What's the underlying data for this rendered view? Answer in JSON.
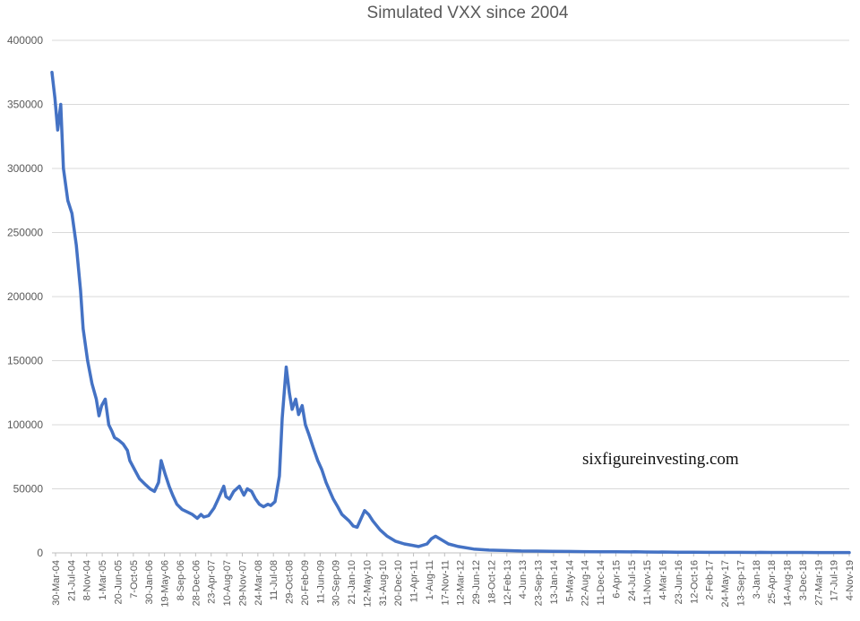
{
  "chart_data": {
    "type": "line",
    "title": "Simulated VXX since 2004",
    "xlabel": "",
    "ylabel": "",
    "ylim": [
      0,
      400000
    ],
    "yticks": [
      0,
      50000,
      100000,
      150000,
      200000,
      250000,
      300000,
      350000,
      400000
    ],
    "ytick_labels": [
      "0",
      "50000",
      "100000",
      "150000",
      "200000",
      "250000",
      "300000",
      "350000",
      "400000"
    ],
    "grid": true,
    "legend": "none",
    "line_color": "#4472c4",
    "xtick_labels": [
      "30-Mar-04",
      "21-Jul-04",
      "8-Nov-04",
      "1-Mar-05",
      "20-Jun-05",
      "7-Oct-05",
      "30-Jan-06",
      "19-May-06",
      "8-Sep-06",
      "28-Dec-06",
      "23-Apr-07",
      "10-Aug-07",
      "29-Nov-07",
      "24-Mar-08",
      "11-Jul-08",
      "29-Oct-08",
      "20-Feb-09",
      "11-Jun-09",
      "30-Sep-09",
      "21-Jan-10",
      "12-May-10",
      "31-Aug-10",
      "20-Dec-10",
      "11-Apr-11",
      "1-Aug-11",
      "17-Nov-11",
      "12-Mar-12",
      "29-Jun-12",
      "18-Oct-12",
      "12-Feb-13",
      "4-Jun-13",
      "23-Sep-13",
      "13-Jan-14",
      "5-May-14",
      "22-Aug-14",
      "11-Dec-14",
      "6-Apr-15",
      "24-Jul-15",
      "11-Nov-15",
      "4-Mar-16",
      "23-Jun-16",
      "12-Oct-16",
      "2-Feb-17",
      "24-May-17",
      "13-Sep-17",
      "3-Jan-18",
      "25-Apr-18",
      "14-Aug-18",
      "3-Dec-18",
      "27-Mar-19",
      "17-Jul-19",
      "4-Nov-19"
    ],
    "x": [
      "2004-03-30",
      "2004-04-20",
      "2004-05-10",
      "2004-06-01",
      "2004-06-20",
      "2004-07-21",
      "2004-08-20",
      "2004-09-20",
      "2004-10-20",
      "2004-11-08",
      "2004-12-10",
      "2005-01-10",
      "2005-02-10",
      "2005-03-01",
      "2005-03-20",
      "2005-04-15",
      "2005-05-10",
      "2005-06-01",
      "2005-06-20",
      "2005-07-20",
      "2005-08-20",
      "2005-09-20",
      "2005-10-07",
      "2005-11-10",
      "2005-12-15",
      "2006-01-30",
      "2006-03-01",
      "2006-04-01",
      "2006-05-01",
      "2006-05-19",
      "2006-06-15",
      "2006-07-15",
      "2006-08-10",
      "2006-09-08",
      "2006-10-15",
      "2006-11-20",
      "2006-12-28",
      "2007-02-01",
      "2007-02-28",
      "2007-03-20",
      "2007-04-23",
      "2007-06-01",
      "2007-07-01",
      "2007-08-10",
      "2007-08-25",
      "2007-09-20",
      "2007-10-20",
      "2007-11-29",
      "2008-01-01",
      "2008-01-25",
      "2008-02-25",
      "2008-03-24",
      "2008-04-20",
      "2008-05-20",
      "2008-06-20",
      "2008-07-11",
      "2008-08-10",
      "2008-09-10",
      "2008-09-30",
      "2008-10-29",
      "2008-11-20",
      "2008-12-10",
      "2009-01-05",
      "2009-01-25",
      "2009-02-20",
      "2009-03-15",
      "2009-04-10",
      "2009-05-10",
      "2009-06-11",
      "2009-07-10",
      "2009-08-10",
      "2009-09-10",
      "2009-09-30",
      "2009-11-01",
      "2009-12-01",
      "2010-01-21",
      "2010-02-20",
      "2010-03-20",
      "2010-05-12",
      "2010-06-10",
      "2010-07-10",
      "2010-08-31",
      "2010-10-20",
      "2010-12-20",
      "2011-02-20",
      "2011-04-11",
      "2011-06-01",
      "2011-08-01",
      "2011-09-01",
      "2011-10-01",
      "2011-11-17",
      "2012-01-01",
      "2012-03-12",
      "2012-06-29",
      "2012-10-18",
      "2013-02-12",
      "2013-06-04",
      "2013-09-23",
      "2014-01-13",
      "2014-05-05",
      "2014-08-22",
      "2014-12-11",
      "2015-04-06",
      "2015-07-24",
      "2015-08-24",
      "2015-11-11",
      "2016-02-11",
      "2016-03-04",
      "2016-06-23",
      "2016-10-12",
      "2017-02-02",
      "2017-05-24",
      "2017-09-13",
      "2018-01-03",
      "2018-02-06",
      "2018-04-25",
      "2018-08-14",
      "2018-12-03",
      "2019-03-27",
      "2019-07-17",
      "2019-11-04"
    ],
    "values": [
      375000,
      355000,
      330000,
      350000,
      300000,
      275000,
      265000,
      240000,
      205000,
      175000,
      150000,
      132000,
      120000,
      107000,
      115000,
      120000,
      100000,
      95000,
      90000,
      88000,
      85000,
      80000,
      72000,
      65000,
      58000,
      53000,
      50000,
      48000,
      55000,
      72000,
      62000,
      52000,
      45000,
      38000,
      34000,
      32000,
      30000,
      27000,
      30000,
      28000,
      29000,
      35000,
      42000,
      52000,
      44000,
      42000,
      48000,
      52000,
      45000,
      50000,
      48000,
      42000,
      38000,
      36000,
      38000,
      37000,
      40000,
      60000,
      105000,
      145000,
      125000,
      112000,
      120000,
      108000,
      115000,
      100000,
      92000,
      82000,
      72000,
      65000,
      55000,
      47000,
      42000,
      36000,
      30000,
      25000,
      21000,
      20000,
      33000,
      30000,
      25000,
      18000,
      13000,
      9000,
      7000,
      6000,
      5000,
      7000,
      11000,
      13000,
      10000,
      7000,
      5000,
      3000,
      2200,
      1800,
      1500,
      1400,
      1200,
      1100,
      1000,
      900,
      850,
      800,
      900,
      700,
      600,
      700,
      550,
      500,
      450,
      420,
      400,
      380,
      450,
      360,
      340,
      320,
      310,
      300,
      290
    ]
  },
  "watermark": "sixfigureinvesting.com"
}
